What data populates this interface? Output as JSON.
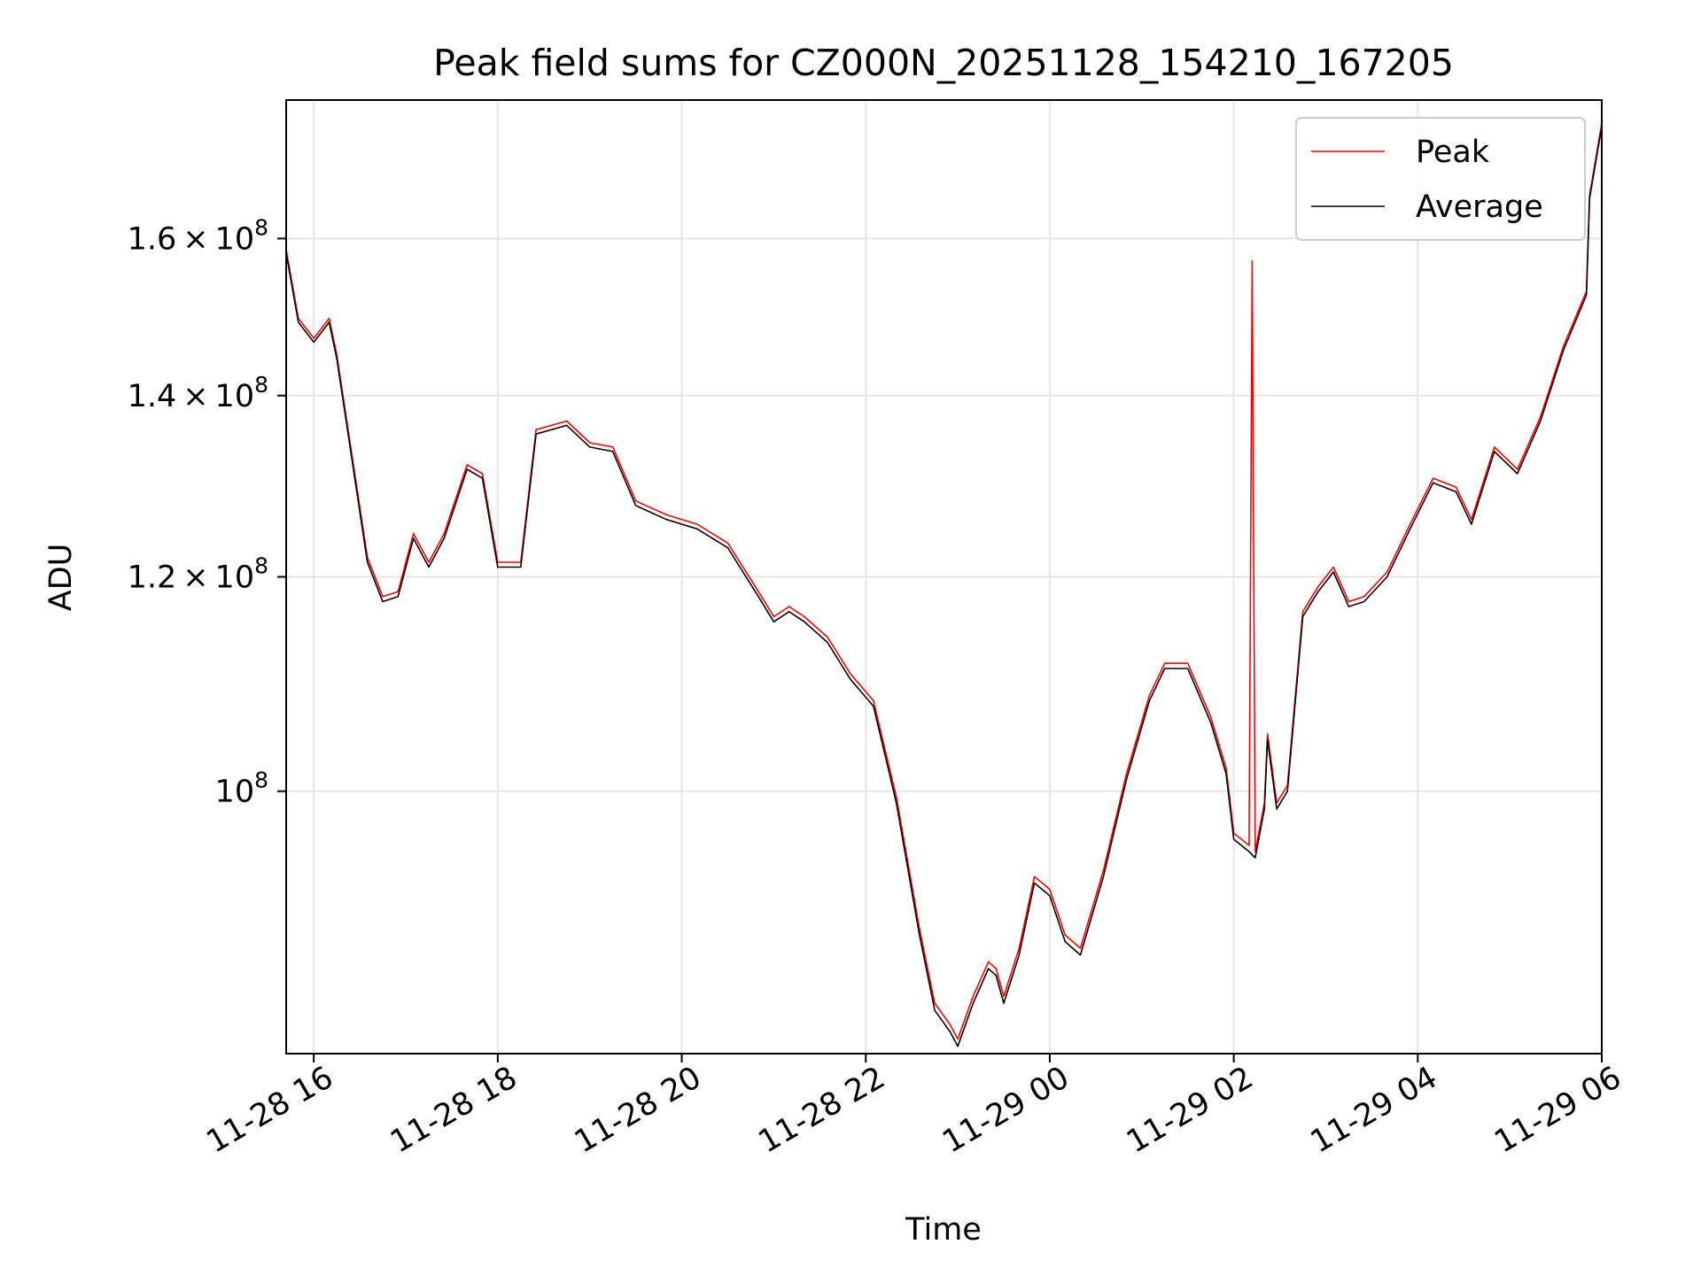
{
  "chart_data": {
    "type": "line",
    "title": "Peak field sums for CZ000N_20251128_154210_167205",
    "xlabel": "Time",
    "ylabel": "ADU",
    "y_scale": "log",
    "grid": true,
    "legend_position": "upper-right",
    "xlim": [
      "2025-11-28 15:42",
      "2025-11-29 06:00"
    ],
    "ylim": [
      80000000,
      180000000
    ],
    "x_ticks": [
      {
        "value": "2025-11-28 16:00",
        "label": "11-28 16"
      },
      {
        "value": "2025-11-28 18:00",
        "label": "11-28 18"
      },
      {
        "value": "2025-11-28 20:00",
        "label": "11-28 20"
      },
      {
        "value": "2025-11-28 22:00",
        "label": "11-28 22"
      },
      {
        "value": "2025-11-29 00:00",
        "label": "11-29 00"
      },
      {
        "value": "2025-11-29 02:00",
        "label": "11-29 02"
      },
      {
        "value": "2025-11-29 04:00",
        "label": "11-29 04"
      },
      {
        "value": "2025-11-29 06:00",
        "label": "11-29 06"
      }
    ],
    "y_ticks": [
      {
        "value": 160000000,
        "mantissa": "1.6",
        "base": "10",
        "exp": "8"
      },
      {
        "value": 140000000,
        "mantissa": "1.4",
        "base": "10",
        "exp": "8"
      },
      {
        "value": 120000000,
        "mantissa": "1.2",
        "base": "10",
        "exp": "8"
      },
      {
        "value": 100000000,
        "mantissa": "",
        "base": "10",
        "exp": "8"
      }
    ],
    "series": [
      {
        "name": "Peak",
        "color": "#ff0000",
        "points": [
          [
            "2025-11-28 15:42",
            158500000
          ],
          [
            "2025-11-28 15:50",
            149500000
          ],
          [
            "2025-11-28 16:00",
            147000000
          ],
          [
            "2025-11-28 16:10",
            149500000
          ],
          [
            "2025-11-28 16:15",
            145000000
          ],
          [
            "2025-11-28 16:25",
            133000000
          ],
          [
            "2025-11-28 16:35",
            122000000
          ],
          [
            "2025-11-28 16:45",
            118000000
          ],
          [
            "2025-11-28 16:55",
            118500000
          ],
          [
            "2025-11-28 17:05",
            124500000
          ],
          [
            "2025-11-28 17:15",
            121500000
          ],
          [
            "2025-11-28 17:25",
            124500000
          ],
          [
            "2025-11-28 17:40",
            132000000
          ],
          [
            "2025-11-28 17:50",
            131000000
          ],
          [
            "2025-11-28 18:00",
            121500000
          ],
          [
            "2025-11-28 18:15",
            121500000
          ],
          [
            "2025-11-28 18:25",
            136000000
          ],
          [
            "2025-11-28 18:45",
            137000000
          ],
          [
            "2025-11-28 19:00",
            134500000
          ],
          [
            "2025-11-28 19:15",
            134000000
          ],
          [
            "2025-11-28 19:30",
            128000000
          ],
          [
            "2025-11-28 19:50",
            126500000
          ],
          [
            "2025-11-28 20:10",
            125500000
          ],
          [
            "2025-11-28 20:30",
            123500000
          ],
          [
            "2025-11-28 20:50",
            118500000
          ],
          [
            "2025-11-28 21:00",
            116000000
          ],
          [
            "2025-11-28 21:10",
            117000000
          ],
          [
            "2025-11-28 21:20",
            116000000
          ],
          [
            "2025-11-28 21:35",
            114000000
          ],
          [
            "2025-11-28 21:50",
            110500000
          ],
          [
            "2025-11-28 22:05",
            108000000
          ],
          [
            "2025-11-28 22:20",
            99500000
          ],
          [
            "2025-11-28 22:35",
            89000000
          ],
          [
            "2025-11-28 22:45",
            83500000
          ],
          [
            "2025-11-28 22:55",
            82000000
          ],
          [
            "2025-11-28 23:00",
            81000000
          ],
          [
            "2025-11-28 23:10",
            84000000
          ],
          [
            "2025-11-28 23:20",
            86500000
          ],
          [
            "2025-11-28 23:25",
            86000000
          ],
          [
            "2025-11-28 23:30",
            84000000
          ],
          [
            "2025-11-28 23:40",
            87500000
          ],
          [
            "2025-11-28 23:50",
            93000000
          ],
          [
            "2025-11-29 00:00",
            92000000
          ],
          [
            "2025-11-29 00:10",
            88500000
          ],
          [
            "2025-11-29 00:20",
            87500000
          ],
          [
            "2025-11-29 00:35",
            93500000
          ],
          [
            "2025-11-29 00:50",
            101500000
          ],
          [
            "2025-11-29 01:05",
            108500000
          ],
          [
            "2025-11-29 01:15",
            111500000
          ],
          [
            "2025-11-29 01:30",
            111500000
          ],
          [
            "2025-11-29 01:45",
            106500000
          ],
          [
            "2025-11-29 01:55",
            102000000
          ],
          [
            "2025-11-29 02:00",
            96500000
          ],
          [
            "2025-11-29 02:10",
            95500000
          ],
          [
            "2025-11-29 02:12",
            157000000
          ],
          [
            "2025-11-29 02:14",
            95000000
          ],
          [
            "2025-11-29 02:20",
            99000000
          ],
          [
            "2025-11-29 02:22",
            105000000
          ],
          [
            "2025-11-29 02:28",
            99000000
          ],
          [
            "2025-11-29 02:35",
            100500000
          ],
          [
            "2025-11-29 02:45",
            116500000
          ],
          [
            "2025-11-29 02:55",
            119000000
          ],
          [
            "2025-11-29 03:05",
            121000000
          ],
          [
            "2025-11-29 03:15",
            117500000
          ],
          [
            "2025-11-29 03:25",
            118000000
          ],
          [
            "2025-11-29 03:40",
            120500000
          ],
          [
            "2025-11-29 03:55",
            125500000
          ],
          [
            "2025-11-29 04:10",
            130500000
          ],
          [
            "2025-11-29 04:25",
            129500000
          ],
          [
            "2025-11-29 04:35",
            126000000
          ],
          [
            "2025-11-29 04:50",
            134000000
          ],
          [
            "2025-11-29 05:05",
            131500000
          ],
          [
            "2025-11-29 05:20",
            137500000
          ],
          [
            "2025-11-29 05:35",
            146000000
          ],
          [
            "2025-11-29 05:50",
            153000000
          ],
          [
            "2025-11-29 05:52",
            166000000
          ],
          [
            "2025-11-29 06:00",
            176500000
          ]
        ]
      },
      {
        "name": "Average",
        "color": "#000000",
        "points": [
          [
            "2025-11-28 15:42",
            158000000
          ],
          [
            "2025-11-28 15:50",
            149000000
          ],
          [
            "2025-11-28 16:00",
            146500000
          ],
          [
            "2025-11-28 16:10",
            149000000
          ],
          [
            "2025-11-28 16:15",
            144500000
          ],
          [
            "2025-11-28 16:25",
            132500000
          ],
          [
            "2025-11-28 16:35",
            121500000
          ],
          [
            "2025-11-28 16:45",
            117500000
          ],
          [
            "2025-11-28 16:55",
            118000000
          ],
          [
            "2025-11-28 17:05",
            124000000
          ],
          [
            "2025-11-28 17:15",
            121000000
          ],
          [
            "2025-11-28 17:25",
            124000000
          ],
          [
            "2025-11-28 17:40",
            131500000
          ],
          [
            "2025-11-28 17:50",
            130500000
          ],
          [
            "2025-11-28 18:00",
            121000000
          ],
          [
            "2025-11-28 18:15",
            121000000
          ],
          [
            "2025-11-28 18:25",
            135500000
          ],
          [
            "2025-11-28 18:45",
            136500000
          ],
          [
            "2025-11-28 19:00",
            134000000
          ],
          [
            "2025-11-28 19:15",
            133500000
          ],
          [
            "2025-11-28 19:30",
            127500000
          ],
          [
            "2025-11-28 19:50",
            126000000
          ],
          [
            "2025-11-28 20:10",
            125000000
          ],
          [
            "2025-11-28 20:30",
            123000000
          ],
          [
            "2025-11-28 20:50",
            118000000
          ],
          [
            "2025-11-28 21:00",
            115500000
          ],
          [
            "2025-11-28 21:10",
            116500000
          ],
          [
            "2025-11-28 21:20",
            115500000
          ],
          [
            "2025-11-28 21:35",
            113500000
          ],
          [
            "2025-11-28 21:50",
            110000000
          ],
          [
            "2025-11-28 22:05",
            107500000
          ],
          [
            "2025-11-28 22:20",
            99000000
          ],
          [
            "2025-11-28 22:35",
            88500000
          ],
          [
            "2025-11-28 22:45",
            83000000
          ],
          [
            "2025-11-28 22:55",
            81500000
          ],
          [
            "2025-11-28 23:00",
            80500000
          ],
          [
            "2025-11-28 23:10",
            83500000
          ],
          [
            "2025-11-28 23:20",
            86000000
          ],
          [
            "2025-11-28 23:25",
            85500000
          ],
          [
            "2025-11-28 23:30",
            83500000
          ],
          [
            "2025-11-28 23:40",
            87000000
          ],
          [
            "2025-11-28 23:50",
            92500000
          ],
          [
            "2025-11-29 00:00",
            91500000
          ],
          [
            "2025-11-29 00:10",
            88000000
          ],
          [
            "2025-11-29 00:20",
            87000000
          ],
          [
            "2025-11-29 00:35",
            93000000
          ],
          [
            "2025-11-29 00:50",
            101000000
          ],
          [
            "2025-11-29 01:05",
            108000000
          ],
          [
            "2025-11-29 01:15",
            111000000
          ],
          [
            "2025-11-29 01:30",
            111000000
          ],
          [
            "2025-11-29 01:45",
            106000000
          ],
          [
            "2025-11-29 01:55",
            101500000
          ],
          [
            "2025-11-29 02:00",
            96000000
          ],
          [
            "2025-11-29 02:10",
            95000000
          ],
          [
            "2025-11-29 02:14",
            94500000
          ],
          [
            "2025-11-29 02:20",
            98500000
          ],
          [
            "2025-11-29 02:22",
            104500000
          ],
          [
            "2025-11-29 02:28",
            98500000
          ],
          [
            "2025-11-29 02:35",
            100000000
          ],
          [
            "2025-11-29 02:45",
            116000000
          ],
          [
            "2025-11-29 02:55",
            118500000
          ],
          [
            "2025-11-29 03:05",
            120500000
          ],
          [
            "2025-11-29 03:15",
            117000000
          ],
          [
            "2025-11-29 03:25",
            117500000
          ],
          [
            "2025-11-29 03:40",
            120000000
          ],
          [
            "2025-11-29 03:55",
            125000000
          ],
          [
            "2025-11-29 04:10",
            130000000
          ],
          [
            "2025-11-29 04:25",
            129000000
          ],
          [
            "2025-11-29 04:35",
            125500000
          ],
          [
            "2025-11-29 04:50",
            133500000
          ],
          [
            "2025-11-29 05:05",
            131000000
          ],
          [
            "2025-11-29 05:20",
            137000000
          ],
          [
            "2025-11-29 05:35",
            145500000
          ],
          [
            "2025-11-29 05:50",
            152500000
          ],
          [
            "2025-11-29 05:52",
            165500000
          ],
          [
            "2025-11-29 06:00",
            176000000
          ]
        ]
      }
    ]
  }
}
